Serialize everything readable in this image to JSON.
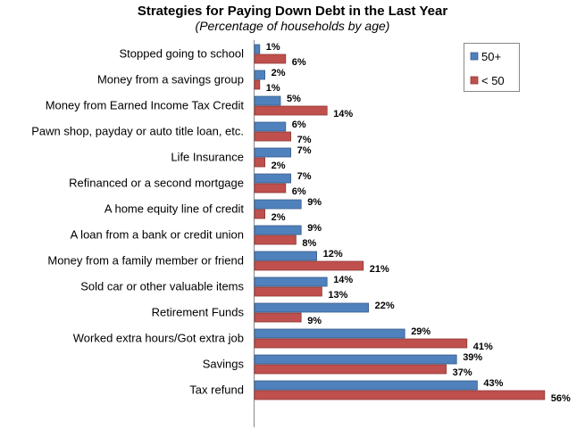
{
  "chart_data": {
    "type": "bar",
    "orientation": "horizontal",
    "title": "Strategies for Paying Down Debt in the Last Year",
    "subtitle": "(Percentage of households by age)",
    "categories": [
      "Stopped going to school",
      "Money from a savings group",
      "Money from Earned Income Tax Credit",
      "Pawn shop, payday or auto title loan, etc.",
      "Life Insurance",
      "Refinanced or a second mortgage",
      "A home equity line of credit",
      "A loan from a bank or credit union",
      "Money from a family member or friend",
      "Sold car or other valuable items",
      "Retirement Funds",
      "Worked extra hours/Got extra job",
      "Savings",
      "Tax refund"
    ],
    "series": [
      {
        "name": "50+",
        "color": "#4F81BD",
        "stroke": "#385D8A",
        "values": [
          1,
          2,
          5,
          6,
          7,
          7,
          9,
          9,
          12,
          14,
          22,
          29,
          39,
          43
        ]
      },
      {
        "name": "< 50",
        "color": "#C0504D",
        "stroke": "#8C3836",
        "values": [
          6,
          1,
          14,
          7,
          2,
          6,
          2,
          8,
          21,
          13,
          9,
          41,
          37,
          56
        ]
      }
    ],
    "data_label_suffix": "%",
    "xlim": [
      0,
      60
    ],
    "grid": false,
    "legend_position": "top-right"
  }
}
